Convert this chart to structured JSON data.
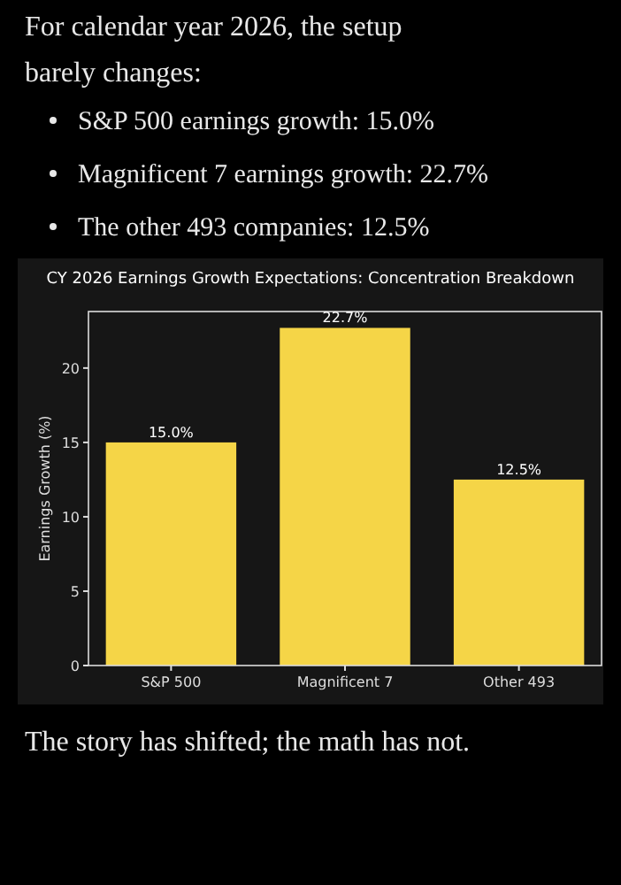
{
  "chart_data": {
    "type": "bar",
    "title": "CY 2026 Earnings Growth Expectations: Concentration Breakdown",
    "ylabel": "Earnings Growth (%)",
    "categories": [
      "S&P 500",
      "Magnificent 7",
      "Other 493"
    ],
    "values": [
      15.0,
      22.7,
      12.5
    ],
    "value_labels": [
      "15.0%",
      "22.7%",
      "12.5%"
    ],
    "color": "#f5d547",
    "ylim": [
      0,
      23.8
    ],
    "yticks": [
      0,
      5,
      10,
      15,
      20
    ],
    "grid": false,
    "annotations": [
      "For calendar year 2026, the setup barely changes:",
      "S&P 500 earnings growth: 15.0%",
      "Magnificent 7 earnings growth: 22.7%",
      "The other 493 companies: 12.5%",
      "The story has shifted; the math has not."
    ]
  }
}
